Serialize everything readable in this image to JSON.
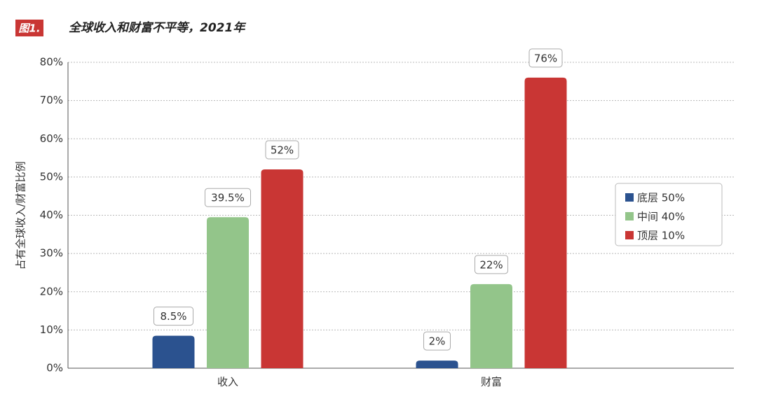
{
  "chart_data": {
    "type": "bar",
    "badge": "图1.",
    "title": "全球收入和财富不平等，2021年",
    "y_label": "占有全球收入/财富比例",
    "categories": [
      "收入",
      "财富"
    ],
    "series": [
      {
        "name": "底层 50%",
        "color": "#2b528f",
        "values": [
          8.5,
          2
        ],
        "value_labels": [
          "8.5%",
          "2%"
        ]
      },
      {
        "name": "中间 40%",
        "color": "#93c58a",
        "values": [
          39.5,
          22
        ],
        "value_labels": [
          "39.5%",
          "22%"
        ]
      },
      {
        "name": "顶层 10%",
        "color": "#c93634",
        "values": [
          52,
          76
        ],
        "value_labels": [
          "52%",
          "76%"
        ]
      }
    ],
    "ylim": [
      0,
      80
    ],
    "yticks": [
      {
        "value": 0,
        "label": "0%"
      },
      {
        "value": 10,
        "label": "10%"
      },
      {
        "value": 20,
        "label": "20%"
      },
      {
        "value": 30,
        "label": "30%"
      },
      {
        "value": 40,
        "label": "40%"
      },
      {
        "value": 50,
        "label": "50%"
      },
      {
        "value": 60,
        "label": "60%"
      },
      {
        "value": 70,
        "label": "70%"
      },
      {
        "value": 80,
        "label": "80%"
      }
    ],
    "grid": true,
    "legend": "right"
  }
}
